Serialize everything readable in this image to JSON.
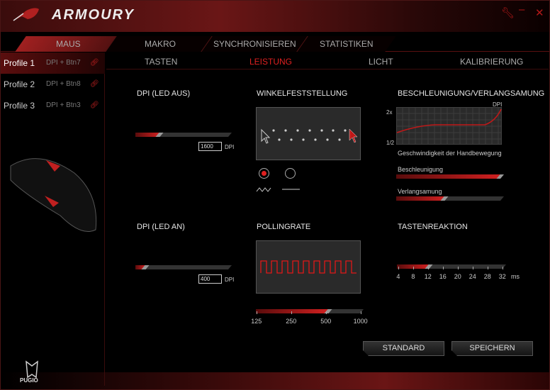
{
  "app": {
    "title": "ARMOURY",
    "brand": "PUGIO",
    "accent": "#d02020"
  },
  "window_controls": {
    "settings": "wrench-icon",
    "minimize": "–",
    "close": "✕"
  },
  "main_tabs": [
    {
      "label": "MAUS",
      "active": true
    },
    {
      "label": "MAKRO"
    },
    {
      "label": "SYNCHRONISIEREN"
    },
    {
      "label": "STATISTIKEN"
    }
  ],
  "profiles": [
    {
      "name": "Profile 1",
      "binding": "DPI + Btn7",
      "active": true
    },
    {
      "name": "Profile 2",
      "binding": "DPI + Btn8"
    },
    {
      "name": "Profile 3",
      "binding": "DPI + Btn3"
    }
  ],
  "sub_tabs": [
    {
      "label": "TASTEN"
    },
    {
      "label": "LEISTUNG",
      "active": true
    },
    {
      "label": "LICHT"
    },
    {
      "label": "KALIBRIERUNG"
    }
  ],
  "dpi_led_off": {
    "title": "DPI (LED AUS)",
    "value": "1600",
    "unit": "DPI",
    "fraction": 0.25
  },
  "dpi_led_on": {
    "title": "DPI (LED AN)",
    "value": "400",
    "unit": "DPI",
    "fraction": 0.1
  },
  "angle_snapping": {
    "title": "WINKELFESTSTELLUNG",
    "selected": "on"
  },
  "polling": {
    "title": "POLLINGRATE",
    "ticks": [
      "125",
      "250",
      "500",
      "1000"
    ],
    "value": "500",
    "fraction": 0.67
  },
  "acceleration": {
    "title": "BESCHLEUNIGUNG/VERLANGSAMUNG",
    "y_top": "2x",
    "y_bottom": "1/2",
    "x_label": "DPI",
    "caption": "Geschwindigkeit der Handbewegung",
    "accel_label": "Beschleunigung",
    "accel_fraction": 0.97,
    "decel_label": "Verlangsamung",
    "decel_fraction": 0.45
  },
  "button_response": {
    "title": "TASTENREAKTION",
    "ticks": [
      "4",
      "8",
      "12",
      "16",
      "20",
      "24",
      "28",
      "32"
    ],
    "unit": "ms",
    "value": "12",
    "fraction": 0.29
  },
  "buttons": {
    "default": "STANDARD",
    "save": "SPEICHERN"
  }
}
